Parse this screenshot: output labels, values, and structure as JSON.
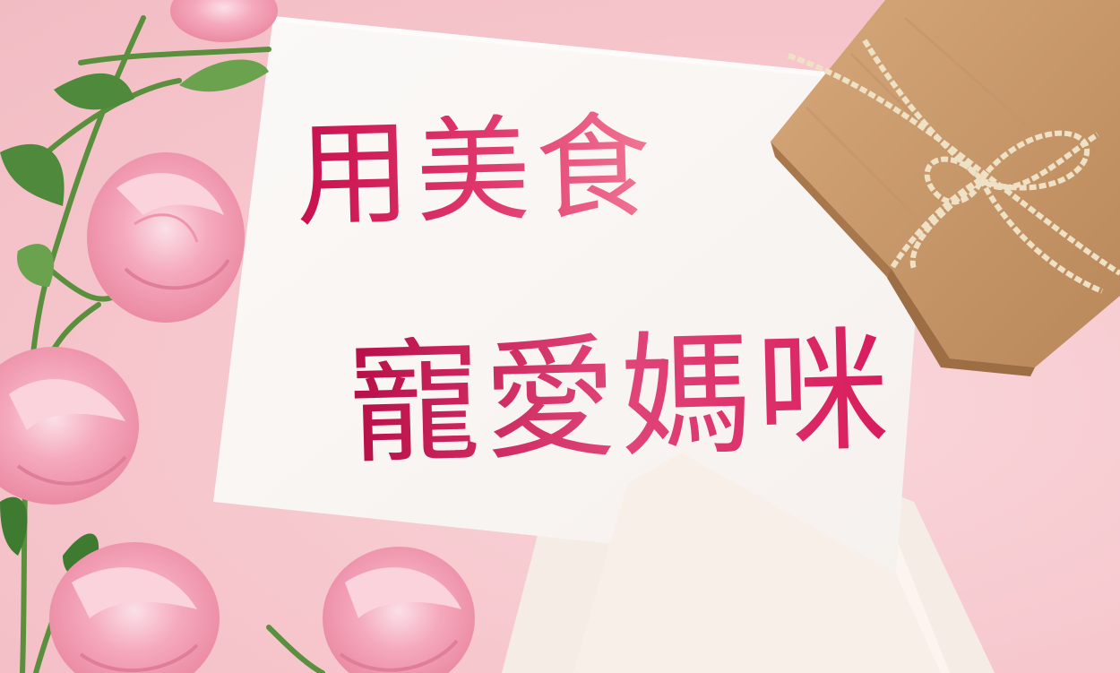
{
  "headline": {
    "line1": "用美食",
    "line2": "寵愛媽咪"
  },
  "colors": {
    "background": "#f6c7cd",
    "text_primary": "#c8104f",
    "text_secondary": "#f27895",
    "card": "#fbf8f6",
    "gift_paper": "#c99a6a",
    "twine": "#ecdcc0",
    "flower": "#f29ab0",
    "leaf": "#4f8a3c"
  },
  "icons": [
    "gift-box-icon",
    "rose-flower-icon",
    "leaf-icon",
    "twine-bow-icon"
  ]
}
